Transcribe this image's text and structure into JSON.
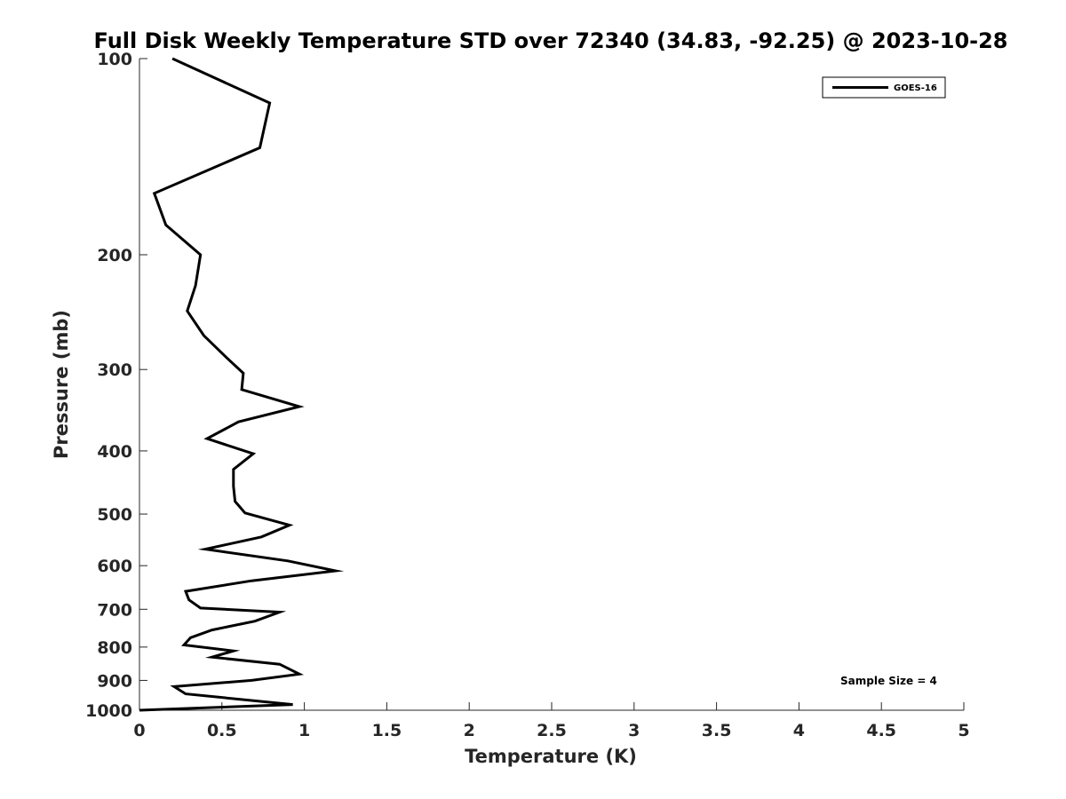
{
  "chart_data": {
    "type": "line",
    "title": "Full Disk Weekly Temperature STD over 72340 (34.83, -92.25) @ 2023-10-28",
    "xlabel": "Temperature (K)",
    "ylabel": "Pressure (mb)",
    "xlim": [
      0,
      5
    ],
    "ylim": [
      100,
      1000
    ],
    "y_scale": "log",
    "y_reversed": true,
    "x_ticks": [
      "0",
      "0.5",
      "1",
      "1.5",
      "2",
      "2.5",
      "3",
      "3.5",
      "4",
      "4.5",
      "5"
    ],
    "y_ticks": [
      "100",
      "200",
      "300",
      "400",
      "500",
      "600",
      "700",
      "800",
      "900",
      "1000"
    ],
    "grid": false,
    "legend_position": "top-right",
    "annotation": "Sample Size = 4",
    "series": [
      {
        "name": "GOES-16",
        "color": "#000000",
        "points": [
          [
            0.2,
            100
          ],
          [
            0.79,
            117
          ],
          [
            0.73,
            137
          ],
          [
            0.09,
            161
          ],
          [
            0.16,
            180
          ],
          [
            0.37,
            200
          ],
          [
            0.34,
            223
          ],
          [
            0.29,
            244
          ],
          [
            0.39,
            266
          ],
          [
            0.53,
            288
          ],
          [
            0.63,
            304
          ],
          [
            0.62,
            322
          ],
          [
            0.97,
            342
          ],
          [
            0.6,
            361
          ],
          [
            0.41,
            383
          ],
          [
            0.69,
            404
          ],
          [
            0.57,
            427
          ],
          [
            0.57,
            453
          ],
          [
            0.58,
            478
          ],
          [
            0.64,
            498
          ],
          [
            0.91,
            520
          ],
          [
            0.74,
            542
          ],
          [
            0.4,
            566
          ],
          [
            0.9,
            590
          ],
          [
            1.19,
            611
          ],
          [
            0.68,
            633
          ],
          [
            0.28,
            657
          ],
          [
            0.3,
            677
          ],
          [
            0.37,
            697
          ],
          [
            0.85,
            707
          ],
          [
            0.7,
            730
          ],
          [
            0.44,
            753
          ],
          [
            0.31,
            774
          ],
          [
            0.27,
            794
          ],
          [
            0.57,
            811
          ],
          [
            0.44,
            829
          ],
          [
            0.85,
            850
          ],
          [
            0.97,
            880
          ],
          [
            0.68,
            900
          ],
          [
            0.21,
            920
          ],
          [
            0.28,
            944
          ],
          [
            0.93,
            980
          ],
          [
            0.0,
            1000
          ]
        ]
      }
    ]
  }
}
